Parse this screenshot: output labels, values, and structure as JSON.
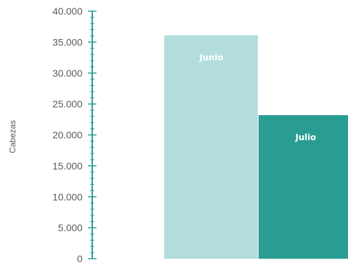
{
  "chart_data": {
    "type": "bar",
    "categories": [
      "Junio",
      "Julio"
    ],
    "values": [
      36100,
      23200
    ],
    "ylabel": "Cabezas",
    "xlabel": "",
    "ylim": [
      0,
      40000
    ],
    "yticks": [
      "0",
      "5.000",
      "10.000",
      "15.000",
      "20.000",
      "25.000",
      "30.000",
      "35.000",
      "40.000"
    ],
    "colors": [
      "#b3dcdd",
      "#2a9d92"
    ],
    "grid": false,
    "legend": "none"
  }
}
